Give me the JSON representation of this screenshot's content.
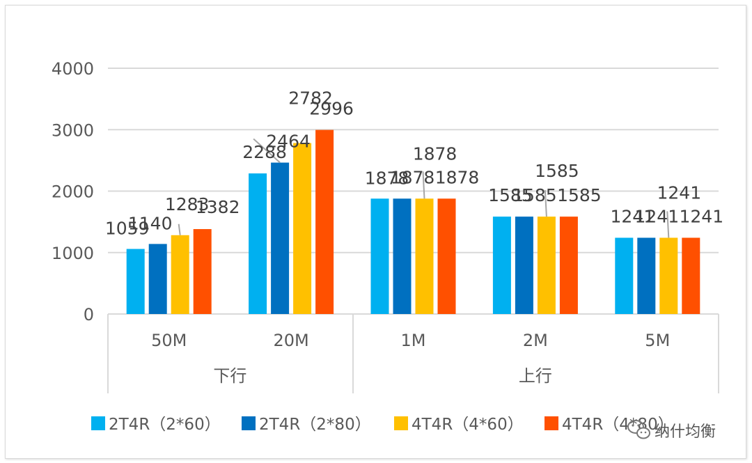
{
  "chart_data": {
    "type": "bar",
    "title": "",
    "xlabel": "",
    "ylabel": "",
    "ylim": [
      0,
      4000
    ],
    "yticks": [
      0,
      1000,
      2000,
      3000,
      4000
    ],
    "grid": true,
    "legend_position": "bottom",
    "groups": [
      {
        "label": "下行",
        "categories": [
          "50M",
          "20M"
        ]
      },
      {
        "label": "上行",
        "categories": [
          "1M",
          "2M",
          "5M"
        ]
      }
    ],
    "categories": [
      "50M",
      "20M",
      "1M",
      "2M",
      "5M"
    ],
    "series": [
      {
        "name": "2T4R（2*60）",
        "color": "#00b0f0",
        "values": [
          1059,
          2288,
          1878,
          1585,
          1241
        ]
      },
      {
        "name": "2T4R（2*80）",
        "color": "#0070c0",
        "values": [
          1140,
          2464,
          1878,
          1585,
          1241
        ]
      },
      {
        "name": "4T4R（4*60）",
        "color": "#ffc000",
        "values": [
          1283,
          2782,
          1878,
          1585,
          1241
        ]
      },
      {
        "name": "4T4R（4*80）",
        "color": "#ff5000",
        "values": [
          1382,
          2996,
          1878,
          1585,
          1241
        ]
      }
    ]
  },
  "watermark": {
    "text": "纳什均衡",
    "icon": "wechat-icon"
  }
}
